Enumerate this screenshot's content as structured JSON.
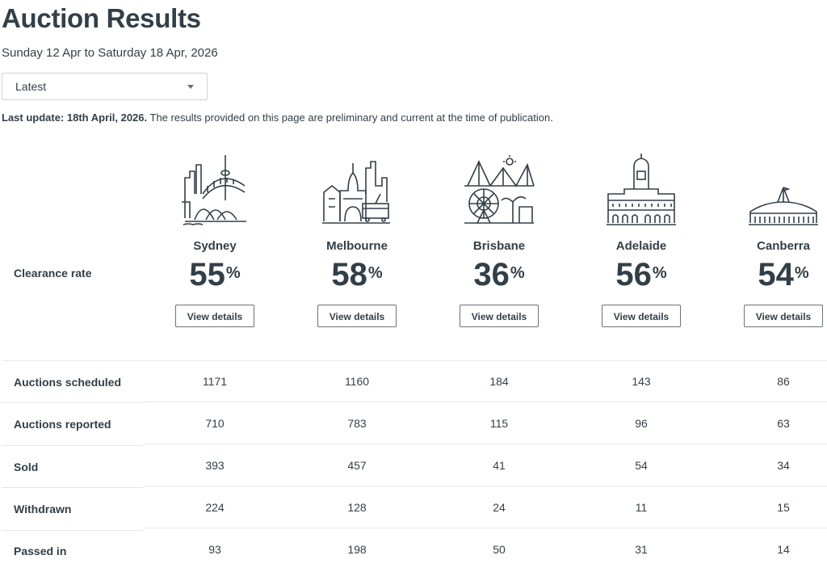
{
  "page": {
    "title": "Auction Results",
    "date_range": "Sunday 12 Apr to Saturday 18 Apr, 2026",
    "period_select": {
      "value": "Latest"
    },
    "last_update_label": "Last update: 18th April, 2026.",
    "notice": " The results provided on this page are preliminary and current at the time of publication."
  },
  "clearance_label": "Clearance rate",
  "view_details_label": "View details",
  "percent_sign": "%",
  "cities": [
    {
      "name": "Sydney",
      "rate": "55",
      "icon": "sydney-skyline-icon"
    },
    {
      "name": "Melbourne",
      "rate": "58",
      "icon": "melbourne-skyline-icon"
    },
    {
      "name": "Brisbane",
      "rate": "36",
      "icon": "brisbane-skyline-icon"
    },
    {
      "name": "Adelaide",
      "rate": "56",
      "icon": "adelaide-skyline-icon"
    },
    {
      "name": "Canberra",
      "rate": "54",
      "icon": "canberra-skyline-icon"
    }
  ],
  "stats": [
    {
      "label": "Auctions scheduled",
      "values": [
        "1171",
        "1160",
        "184",
        "143",
        "86"
      ]
    },
    {
      "label": "Auctions reported",
      "values": [
        "710",
        "783",
        "115",
        "96",
        "63"
      ]
    },
    {
      "label": "Sold",
      "values": [
        "393",
        "457",
        "41",
        "54",
        "34"
      ]
    },
    {
      "label": "Withdrawn",
      "values": [
        "224",
        "128",
        "24",
        "11",
        "15"
      ]
    },
    {
      "label": "Passed in",
      "values": [
        "93",
        "198",
        "50",
        "31",
        "14"
      ]
    }
  ]
}
